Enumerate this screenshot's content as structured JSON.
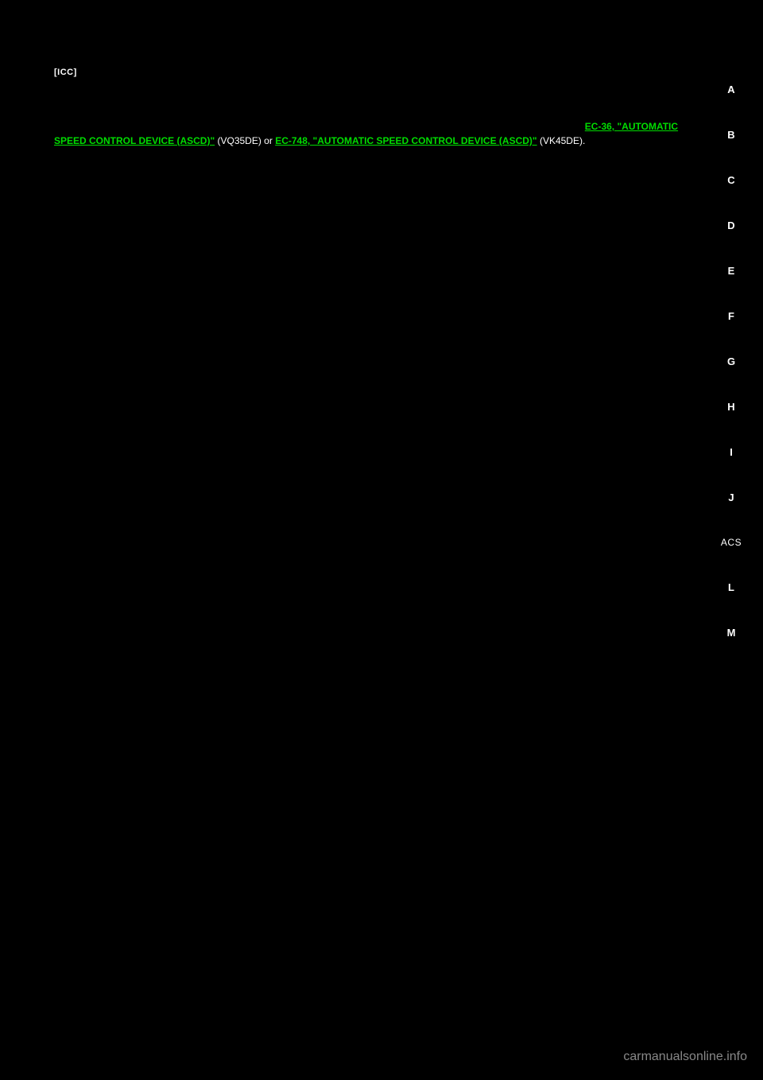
{
  "header": {
    "label": "[ICC]"
  },
  "sidebar": {
    "items": [
      {
        "label": "A"
      },
      {
        "label": "B"
      },
      {
        "label": "C"
      },
      {
        "label": "D"
      },
      {
        "label": "E"
      },
      {
        "label": "F"
      },
      {
        "label": "G"
      },
      {
        "label": "H"
      },
      {
        "label": "I"
      },
      {
        "label": "J"
      },
      {
        "label": "ACS"
      },
      {
        "label": "L"
      },
      {
        "label": "M"
      }
    ]
  },
  "body": {
    "prefix": "",
    "link1": "EC-36, \"AUTOMATIC SPEED CONTROL DEVICE (ASCD)\"",
    "middle": " (VQ35DE) or ",
    "link2": "EC-748, \"AUTOMATIC SPEED CONTROL DEVICE (ASCD)\"",
    "suffix": " (VK45DE)."
  },
  "watermark": "carmanualsonline.info"
}
